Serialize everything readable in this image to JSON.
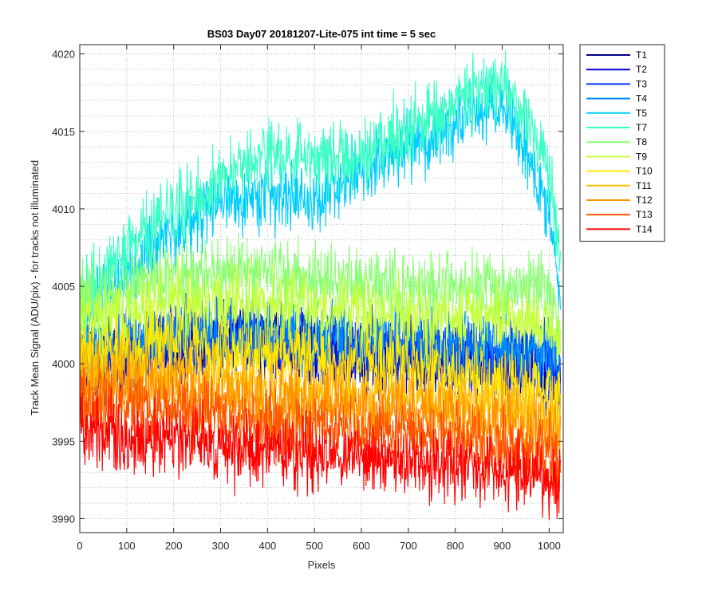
{
  "chart_data": {
    "type": "line",
    "title": "BS03 Day07 20181207-Lite-075 int time = 5 sec",
    "xlabel": "Pixels",
    "ylabel": "Track Mean Signal (ADU/pix) - for tracks not illuminated",
    "xlim": [
      0,
      1030
    ],
    "ylim": [
      3989.1,
      4020.6
    ],
    "xticks": [
      0,
      100,
      200,
      300,
      400,
      500,
      600,
      700,
      800,
      900,
      1000
    ],
    "yticks": [
      3990,
      3995,
      4000,
      4005,
      4010,
      4015,
      4020
    ],
    "grid": true,
    "minor_grid_y": true,
    "legend_position": "outside-top-right",
    "noise_amplitude": 1.6,
    "series": [
      {
        "name": "T1",
        "color": "#00007f",
        "x": [
          0,
          100,
          200,
          300,
          400,
          500,
          600,
          700,
          800,
          900,
          1000,
          1024
        ],
        "y": [
          4000.0,
          4000.5,
          4001.0,
          4001.5,
          4001.5,
          4001.0,
          4000.5,
          4000.5,
          4000.5,
          4000.0,
          3999.5,
          3998.0
        ]
      },
      {
        "name": "T2",
        "color": "#0000d5",
        "x": [
          0,
          100,
          200,
          300,
          400,
          500,
          600,
          700,
          800,
          900,
          1000,
          1024
        ],
        "y": [
          4000.0,
          4000.5,
          4001.0,
          4001.5,
          4001.5,
          4001.0,
          4000.5,
          4000.5,
          4000.5,
          4000.0,
          3999.5,
          3998.0
        ]
      },
      {
        "name": "T3",
        "color": "#0031ff",
        "x": [
          0,
          100,
          200,
          300,
          400,
          500,
          600,
          700,
          800,
          900,
          1000,
          1024
        ],
        "y": [
          4000.5,
          4001.0,
          4001.5,
          4001.5,
          4001.5,
          4001.0,
          4001.0,
          4001.0,
          4000.5,
          4000.5,
          4000.0,
          3998.5
        ]
      },
      {
        "name": "T4",
        "color": "#0088ff",
        "x": [
          0,
          100,
          200,
          300,
          400,
          500,
          600,
          700,
          800,
          900,
          1000,
          1024
        ],
        "y": [
          4001.0,
          4001.5,
          4002.0,
          4002.0,
          4002.0,
          4001.5,
          4001.5,
          4001.5,
          4001.0,
          4001.0,
          4000.5,
          3999.0
        ]
      },
      {
        "name": "T5",
        "color": "#00ccff",
        "x": [
          0,
          100,
          200,
          300,
          400,
          500,
          600,
          700,
          800,
          900,
          950,
          1000,
          1024
        ],
        "y": [
          4003.0,
          4006.0,
          4008.5,
          4010.5,
          4011.0,
          4010.5,
          4012.5,
          4014.0,
          4015.5,
          4016.5,
          4014.0,
          4009.5,
          4004.5
        ]
      },
      {
        "name": "T7",
        "color": "#3affc4",
        "x": [
          0,
          100,
          200,
          300,
          400,
          500,
          600,
          700,
          800,
          900,
          950,
          1000,
          1024
        ],
        "y": [
          4004.0,
          4007.5,
          4010.0,
          4012.0,
          4013.5,
          4013.0,
          4013.5,
          4015.0,
          4017.0,
          4018.0,
          4016.0,
          4012.5,
          4006.0
        ]
      },
      {
        "name": "T8",
        "color": "#8bff74",
        "x": [
          0,
          100,
          200,
          300,
          400,
          500,
          600,
          700,
          800,
          900,
          1000,
          1024
        ],
        "y": [
          4004.0,
          4005.0,
          4005.5,
          4006.0,
          4006.0,
          4005.5,
          4005.5,
          4005.0,
          4005.0,
          4005.0,
          4004.5,
          4003.0
        ]
      },
      {
        "name": "T9",
        "color": "#c4ff3a",
        "x": [
          0,
          100,
          200,
          300,
          400,
          500,
          600,
          700,
          800,
          900,
          1000,
          1024
        ],
        "y": [
          4002.5,
          4003.5,
          4004.0,
          4004.0,
          4004.0,
          4003.5,
          4003.5,
          4003.0,
          4003.0,
          4003.0,
          4002.5,
          4001.5
        ]
      },
      {
        "name": "T10",
        "color": "#ffea00",
        "x": [
          0,
          100,
          200,
          300,
          400,
          500,
          600,
          700,
          800,
          900,
          1000,
          1024
        ],
        "y": [
          4000.5,
          4001.0,
          4001.5,
          4001.0,
          4000.5,
          4000.5,
          4000.0,
          4000.0,
          3999.5,
          3999.0,
          3998.5,
          3998.0
        ]
      },
      {
        "name": "T11",
        "color": "#ffbe00",
        "x": [
          0,
          100,
          200,
          300,
          400,
          500,
          600,
          700,
          800,
          900,
          1000,
          1024
        ],
        "y": [
          3999.5,
          3999.5,
          3999.5,
          3999.0,
          3998.5,
          3998.5,
          3998.0,
          3998.0,
          3997.5,
          3997.5,
          3997.0,
          3996.5
        ]
      },
      {
        "name": "T12",
        "color": "#ff9200",
        "x": [
          0,
          100,
          200,
          300,
          400,
          500,
          600,
          700,
          800,
          900,
          1000,
          1024
        ],
        "y": [
          3998.5,
          3998.5,
          3998.5,
          3998.0,
          3997.5,
          3997.5,
          3997.0,
          3997.0,
          3996.5,
          3996.0,
          3995.5,
          3995.0
        ]
      },
      {
        "name": "T13",
        "color": "#ff5200",
        "x": [
          0,
          100,
          200,
          300,
          400,
          500,
          600,
          700,
          800,
          900,
          1000,
          1024
        ],
        "y": [
          3997.5,
          3997.0,
          3997.0,
          3996.5,
          3996.0,
          3996.0,
          3995.5,
          3995.5,
          3995.0,
          3994.5,
          3994.0,
          3993.5
        ]
      },
      {
        "name": "T14",
        "color": "#ff0000",
        "x": [
          0,
          100,
          200,
          300,
          400,
          500,
          600,
          700,
          800,
          900,
          1000,
          1024
        ],
        "y": [
          3996.0,
          3995.0,
          3995.0,
          3994.5,
          3994.5,
          3994.0,
          3994.0,
          3993.5,
          3993.5,
          3993.0,
          3992.5,
          3992.0
        ]
      }
    ]
  }
}
